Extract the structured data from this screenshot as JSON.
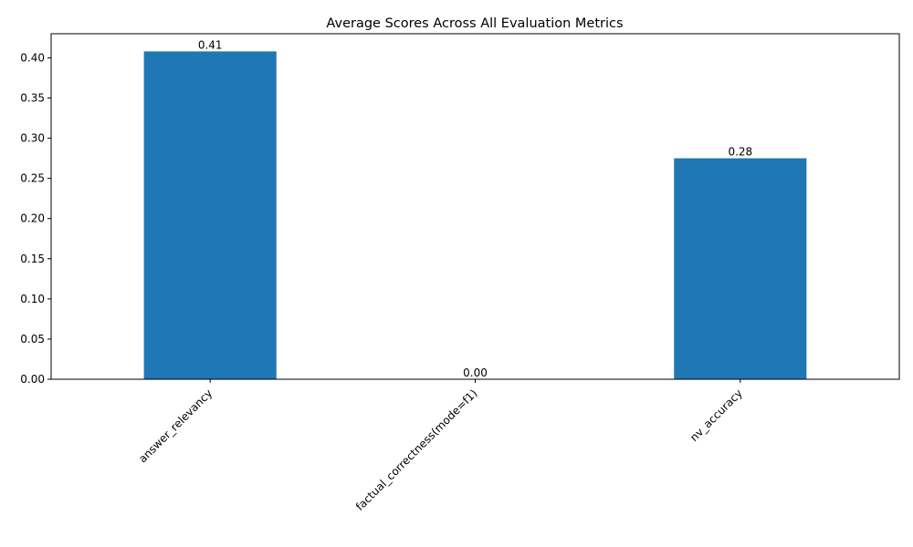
{
  "chart_data": {
    "type": "bar",
    "title": "Average Scores Across All Evaluation Metrics",
    "xlabel": "",
    "ylabel": "",
    "categories": [
      "answer_relevancy",
      "factual_correctness(mode=f1)",
      "nv_accuracy"
    ],
    "values": [
      0.408,
      0.0,
      0.275
    ],
    "value_labels": [
      "0.41",
      "0.00",
      "0.28"
    ],
    "ylim": [
      0,
      0.43
    ],
    "yticks": [
      0.0,
      0.05,
      0.1,
      0.15,
      0.2,
      0.25,
      0.3,
      0.35,
      0.4
    ],
    "ytick_labels": [
      "0.00",
      "0.05",
      "0.10",
      "0.15",
      "0.20",
      "0.25",
      "0.30",
      "0.35",
      "0.40"
    ],
    "bar_color": "#1f77b4",
    "grid": false,
    "legend": "none"
  }
}
